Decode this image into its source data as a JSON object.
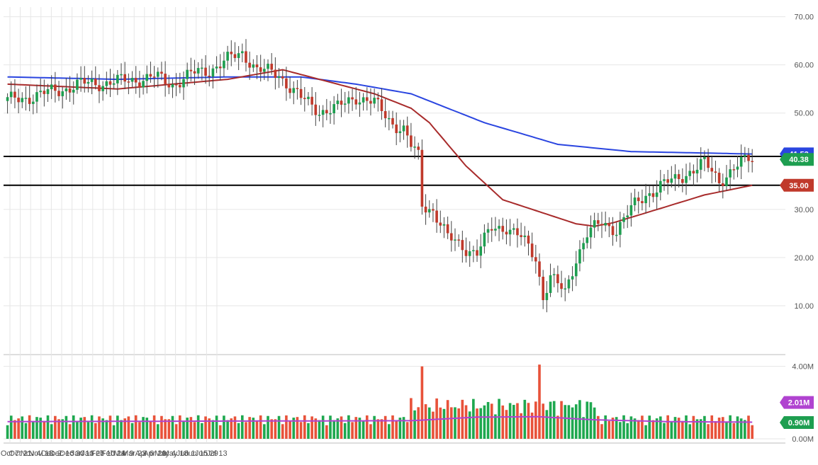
{
  "chart_data": {
    "type": "candlestick",
    "x_ticks": [
      "Oct 7",
      "Oct 21",
      "Nov 4",
      "Nov 18",
      "Dec 2",
      "Dec 16",
      "Dec 30",
      "Jan 13",
      "Jan 27",
      "Feb 10",
      "Feb 24",
      "Mar 9",
      "Mar 23",
      "Apr 6",
      "Apr 20",
      "May 4",
      "May 18",
      "Jun 1",
      "Jun 15",
      "Jun 29",
      "Jul 13"
    ],
    "price_axis": {
      "ticks": [
        "70.00",
        "60.00",
        "50.00",
        "30.00",
        "20.00",
        "10.00"
      ],
      "ylim": [
        0,
        72
      ]
    },
    "volume_axis": {
      "ticks": [
        "4.00M",
        "0.00M"
      ],
      "ylim_millions": [
        0,
        4.3
      ]
    },
    "horizontal_lines": [
      41,
      35
    ],
    "price_tags": [
      {
        "label": "41.53",
        "value": 41.53,
        "color": "#2a45e0"
      },
      {
        "label": "40.38",
        "value": 40.38,
        "color": "#1e9e50"
      },
      {
        "label": "35.00",
        "value": 35.0,
        "color": "#c0392b"
      }
    ],
    "volume_tags": [
      {
        "label": "2.01M",
        "value": 2.01,
        "color": "#b043d0"
      },
      {
        "label": "0.90M",
        "value": 0.9,
        "color": "#1e9e50"
      }
    ],
    "colors": {
      "up": "#1e9e50",
      "down": "#c0392b",
      "ma_slow": "#2a45e0",
      "ma_fast": "#a82b2b",
      "vol_ma": "#b043d0",
      "vol_up": "#1ea84f",
      "vol_down": "#e8523a",
      "grid": "#e6e6e6"
    },
    "candle_keypoints": [
      [
        0,
        52.5
      ],
      [
        10,
        54
      ],
      [
        20,
        56
      ],
      [
        30,
        56.5
      ],
      [
        40,
        57.5
      ],
      [
        45,
        56
      ],
      [
        50,
        58
      ],
      [
        55,
        59
      ],
      [
        60,
        61
      ],
      [
        64,
        62.5
      ],
      [
        66,
        61
      ],
      [
        68,
        59
      ],
      [
        74,
        58
      ],
      [
        80,
        53
      ],
      [
        85,
        50.5
      ],
      [
        90,
        51
      ],
      [
        95,
        53.5
      ],
      [
        100,
        52
      ],
      [
        105,
        48
      ],
      [
        108,
        46.5
      ],
      [
        110,
        43
      ],
      [
        112,
        41
      ],
      [
        113,
        31
      ],
      [
        116,
        30
      ],
      [
        120,
        24
      ],
      [
        125,
        22
      ],
      [
        128,
        21
      ],
      [
        132,
        26
      ],
      [
        136,
        26.5
      ],
      [
        140,
        24
      ],
      [
        144,
        20
      ],
      [
        146,
        12
      ],
      [
        148,
        16
      ],
      [
        152,
        12.5
      ],
      [
        155,
        20
      ],
      [
        158,
        25
      ],
      [
        162,
        27
      ],
      [
        166,
        26
      ],
      [
        170,
        30
      ],
      [
        174,
        33
      ],
      [
        178,
        35
      ],
      [
        182,
        36
      ],
      [
        186,
        38
      ],
      [
        190,
        39.5
      ],
      [
        194,
        36
      ],
      [
        198,
        38.5
      ],
      [
        202,
        40.4
      ],
      [
        203,
        40.4
      ]
    ],
    "ma_slow_keypoints": [
      [
        0,
        57.5
      ],
      [
        30,
        57
      ],
      [
        60,
        57.5
      ],
      [
        80,
        57.5
      ],
      [
        95,
        56
      ],
      [
        110,
        54
      ],
      [
        130,
        48
      ],
      [
        150,
        43.5
      ],
      [
        170,
        42
      ],
      [
        203,
        41.5
      ]
    ],
    "ma_fast_keypoints": [
      [
        0,
        56
      ],
      [
        30,
        55
      ],
      [
        60,
        57
      ],
      [
        75,
        59
      ],
      [
        85,
        57
      ],
      [
        100,
        54
      ],
      [
        110,
        51
      ],
      [
        115,
        48
      ],
      [
        125,
        39
      ],
      [
        135,
        32
      ],
      [
        145,
        29.5
      ],
      [
        155,
        27
      ],
      [
        160,
        26.5
      ],
      [
        165,
        27.2
      ],
      [
        175,
        29.5
      ],
      [
        190,
        33
      ],
      [
        203,
        35
      ]
    ],
    "volume_ma_keypoints": [
      [
        0,
        0.95
      ],
      [
        60,
        0.98
      ],
      [
        110,
        1.0
      ],
      [
        128,
        1.2
      ],
      [
        145,
        1.22
      ],
      [
        160,
        1.05
      ],
      [
        180,
        0.95
      ],
      [
        203,
        0.92
      ]
    ]
  }
}
